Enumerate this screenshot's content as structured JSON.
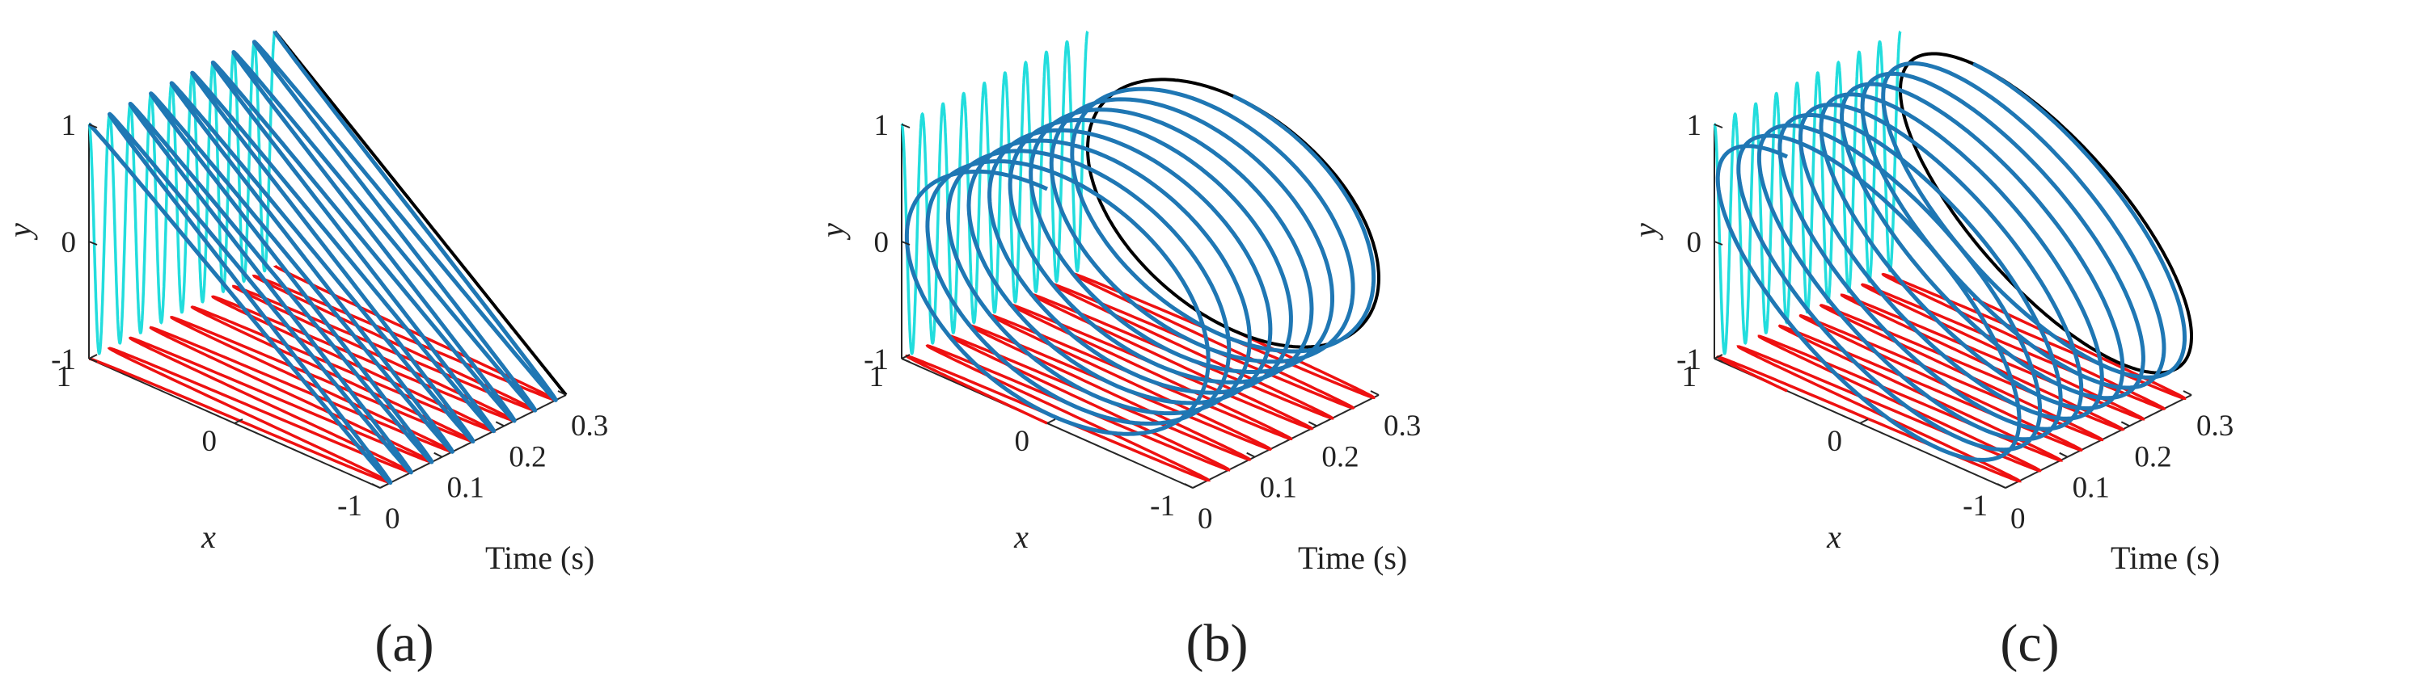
{
  "figure": {
    "panels": [
      {
        "caption": "(a)",
        "orbit": "linear"
      },
      {
        "caption": "(b)",
        "orbit": "circular"
      },
      {
        "caption": "(c)",
        "orbit": "elliptical"
      }
    ]
  },
  "chart_data": [
    {
      "type": "line",
      "projection": "3d",
      "caption": "(a)",
      "xlabel": "Time (s)",
      "ylabel": "x",
      "zlabel": "y",
      "time_ticks": [
        "0",
        "0.1",
        "0.2",
        "0.3"
      ],
      "x_ticks": [
        "1",
        "0",
        "-1"
      ],
      "y_ticks": [
        "1",
        "0",
        "-1"
      ],
      "time_range": [
        0,
        0.3
      ],
      "x_range": [
        -1,
        1
      ],
      "y_range": [
        -1,
        1
      ],
      "frequency_hz": 30,
      "duration_s": 0.3,
      "signals": {
        "x_phase_deg": 90,
        "y_phase_deg": 90,
        "x_amplitude": 1,
        "y_amplitude": 1
      },
      "colors": {
        "trajectory": "#1f77b4",
        "x_projection": "#ee1111",
        "y_projection": "#22dddd",
        "end_projection": "#000000"
      }
    },
    {
      "type": "line",
      "projection": "3d",
      "caption": "(b)",
      "xlabel": "Time (s)",
      "ylabel": "x",
      "zlabel": "y",
      "time_ticks": [
        "0",
        "0.1",
        "0.2",
        "0.3"
      ],
      "x_ticks": [
        "1",
        "0",
        "-1"
      ],
      "y_ticks": [
        "1",
        "0",
        "-1"
      ],
      "time_range": [
        0,
        0.3
      ],
      "x_range": [
        -1,
        1
      ],
      "y_range": [
        -1,
        1
      ],
      "frequency_hz": 30,
      "duration_s": 0.3,
      "signals": {
        "x_phase_deg": 0,
        "y_phase_deg": 90,
        "x_amplitude": 1,
        "y_amplitude": 1
      },
      "colors": {
        "trajectory": "#1f77b4",
        "x_projection": "#ee1111",
        "y_projection": "#22dddd",
        "end_projection": "#000000"
      }
    },
    {
      "type": "line",
      "projection": "3d",
      "caption": "(c)",
      "xlabel": "Time (s)",
      "ylabel": "x",
      "zlabel": "y",
      "time_ticks": [
        "0",
        "0.1",
        "0.2",
        "0.3"
      ],
      "x_ticks": [
        "1",
        "0",
        "-1"
      ],
      "y_ticks": [
        "1",
        "0",
        "-1"
      ],
      "time_range": [
        0,
        0.3
      ],
      "x_range": [
        -1,
        1
      ],
      "y_range": [
        -1,
        1
      ],
      "frequency_hz": 30,
      "duration_s": 0.3,
      "signals": {
        "x_phase_deg": 30,
        "y_phase_deg": 90,
        "x_amplitude": 1,
        "y_amplitude": 1
      },
      "colors": {
        "trajectory": "#1f77b4",
        "x_projection": "#ee1111",
        "y_projection": "#22dddd",
        "end_projection": "#000000"
      }
    }
  ]
}
